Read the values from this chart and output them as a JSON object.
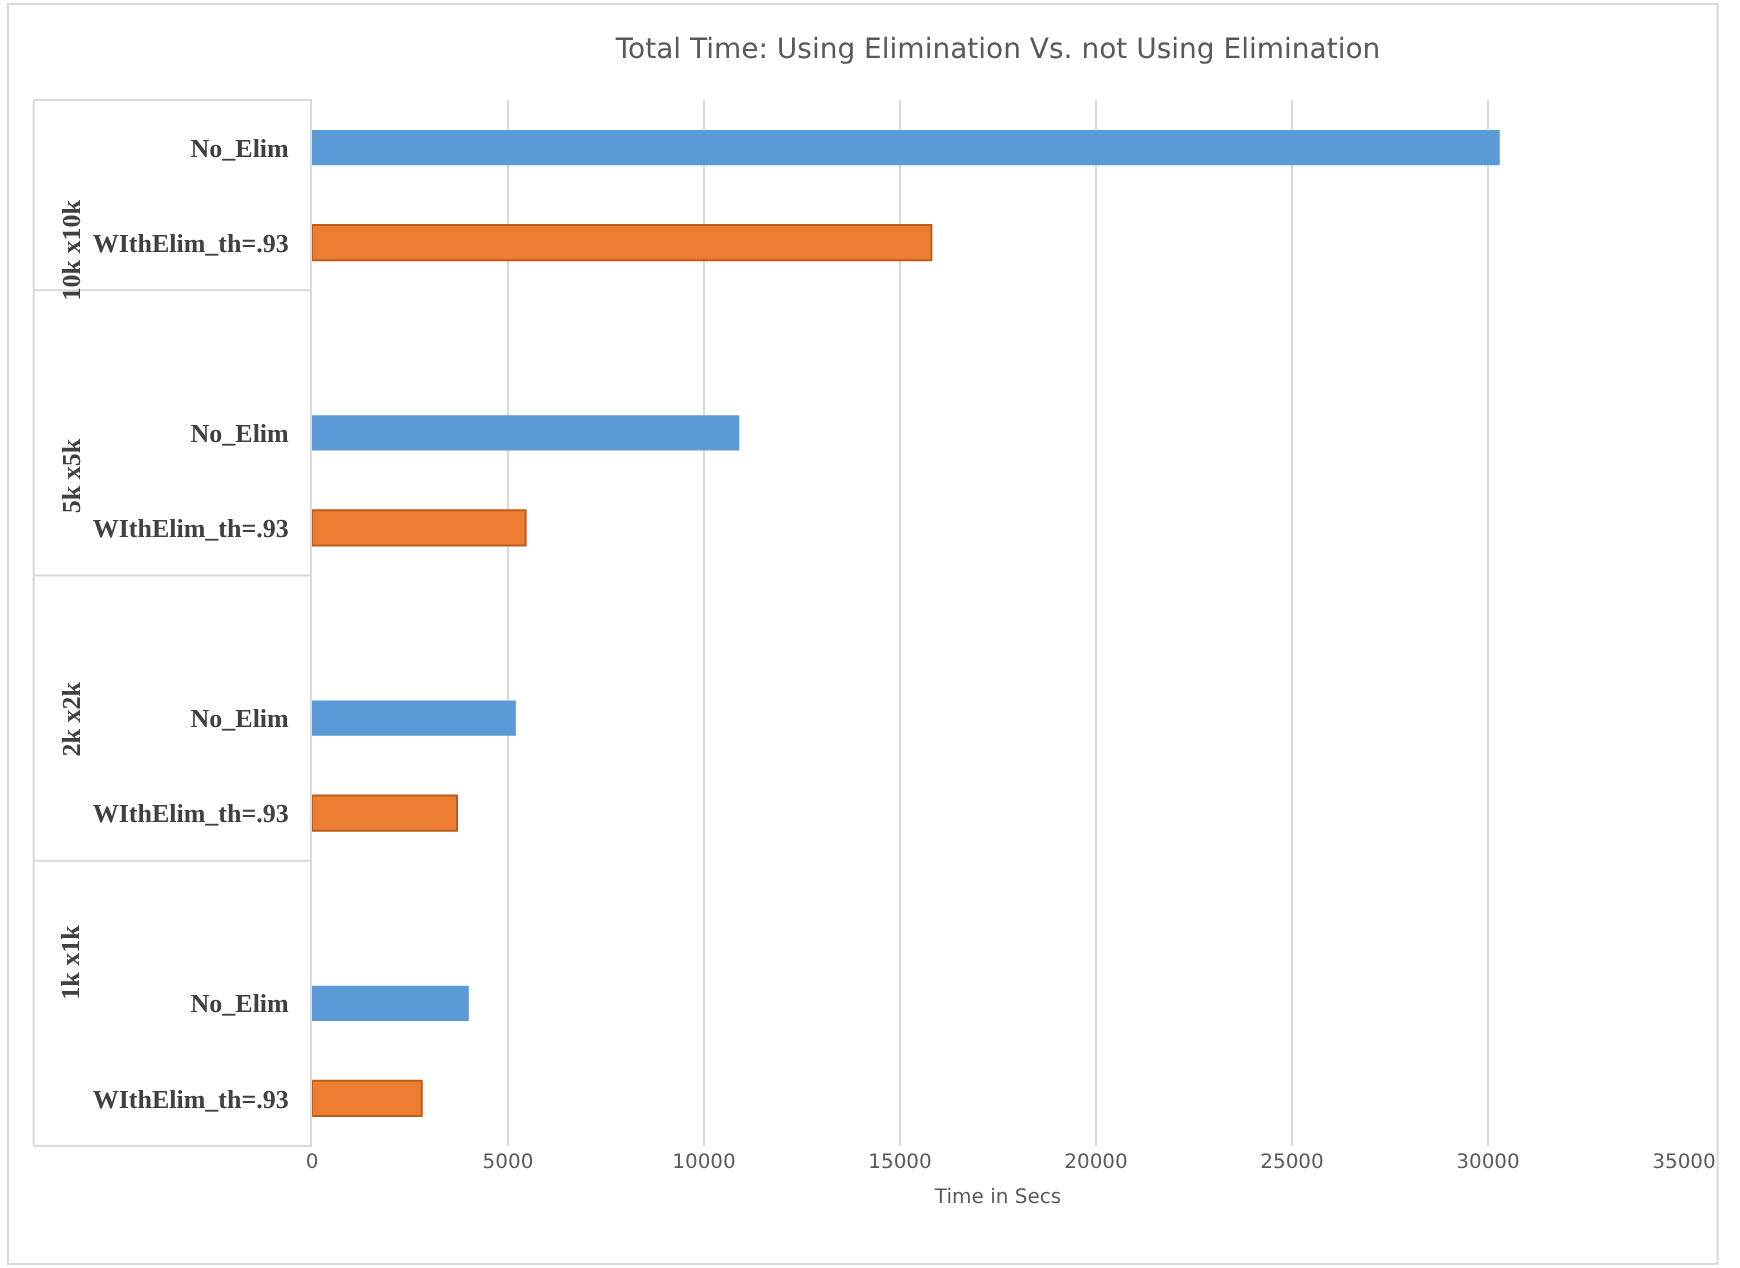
{
  "chart_data": {
    "type": "bar",
    "orientation": "horizontal",
    "title": "Total Time: Using Elimination Vs. not Using Elimination",
    "xlabel": "Time in Secs",
    "categories": [
      "No_Elim",
      "WIthElim_th=.93",
      null,
      "No_Elim",
      "WIthElim_th=.93",
      null,
      "No_Elim",
      "WIthElim_th=.93",
      null,
      "No_Elim",
      "WIthElim_th=.93"
    ],
    "values": [
      30300,
      15800,
      null,
      10900,
      5450,
      null,
      5200,
      3700,
      null,
      4000,
      2800
    ],
    "colors": [
      "#5b9bd5",
      "#ed7d31",
      null,
      "#5b9bd5",
      "#ed7d31",
      null,
      "#5b9bd5",
      "#ed7d31",
      null,
      "#5b9bd5",
      "#ed7d31"
    ],
    "annotations": [
      "10k x10k",
      "5k x5k",
      "2k x2k",
      "1k x1k"
    ],
    "xlim": [
      0,
      35000
    ],
    "xticks": [
      0,
      5000,
      10000,
      15000,
      20000,
      25000,
      30000,
      35000
    ],
    "grid": "x"
  }
}
